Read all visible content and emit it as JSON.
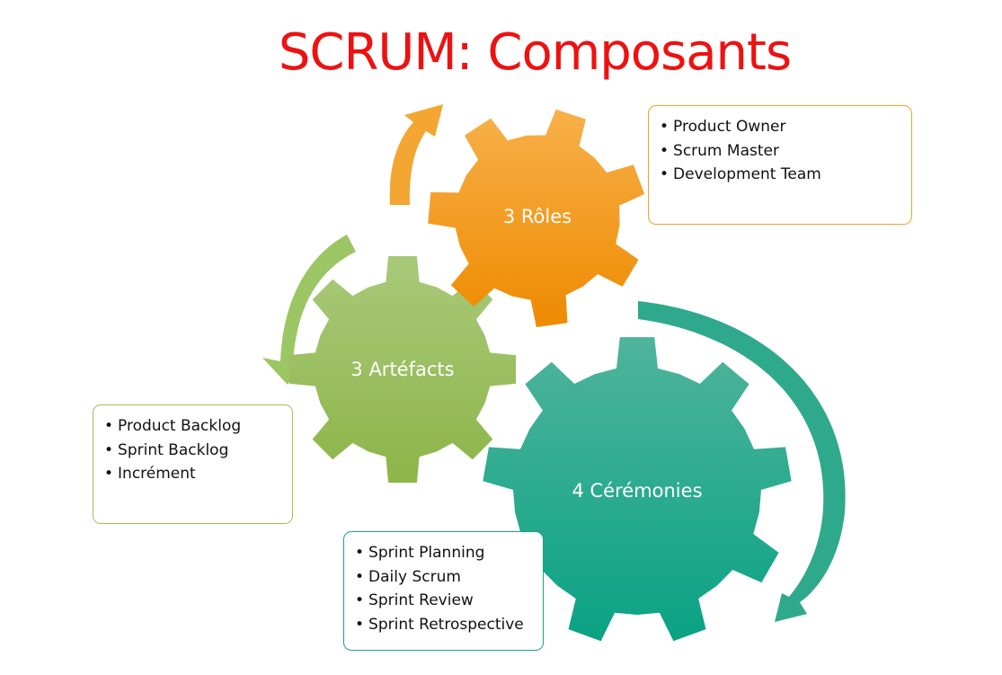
{
  "title": "SCRUM: Composants",
  "colors": {
    "title": "#ee1111",
    "roles_gear": "#f39c1e",
    "artefacts_gear": "#9bc05a",
    "ceremonies_gear": "#14a58a",
    "roles_arrow": "#f4a632",
    "artefacts_arrow": "#9cc563",
    "ceremonies_arrow": "#2fa98c"
  },
  "gears": {
    "roles": {
      "label": "3 Rôles"
    },
    "artefacts": {
      "label": "3 Artéfacts"
    },
    "ceremonies": {
      "label": "4 Cérémonies"
    }
  },
  "boxes": {
    "roles": {
      "items": [
        "Product Owner",
        "Scrum Master",
        "Development Team"
      ]
    },
    "artefacts": {
      "items": [
        "Product Backlog",
        "Sprint Backlog",
        "Incrément"
      ]
    },
    "ceremonies": {
      "items": [
        "Sprint Planning",
        "Daily Scrum",
        "Sprint Review",
        "Sprint Retrospective"
      ]
    }
  }
}
